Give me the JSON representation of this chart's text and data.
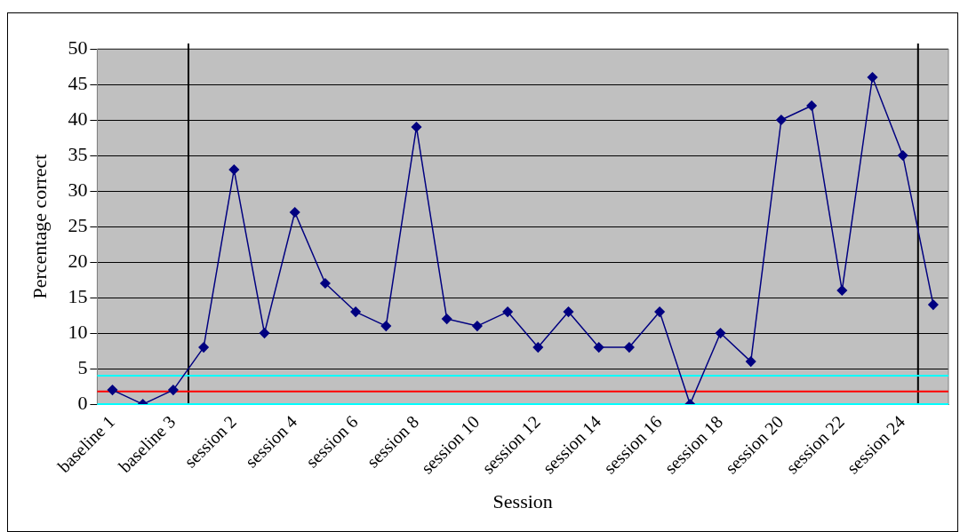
{
  "chart_data": {
    "type": "line",
    "xlabel": "Session",
    "ylabel": "Percentage correct",
    "categories": [
      "baseline 1",
      null,
      "baseline 3",
      null,
      "session 2",
      null,
      "session 4",
      null,
      "session 6",
      null,
      "session 8",
      null,
      "session 10",
      null,
      "session 12",
      null,
      "session 14",
      null,
      "session 16",
      null,
      "session 18",
      null,
      "session 20",
      null,
      "session 22",
      null,
      "session 24",
      null
    ],
    "series": [
      {
        "color": "#000080",
        "values": [
          2,
          0,
          2,
          8,
          33,
          10,
          27,
          17,
          13,
          11,
          39,
          12,
          11,
          13,
          8,
          13,
          8,
          8,
          13,
          0,
          10,
          6,
          40,
          42,
          16,
          46,
          35,
          14
        ]
      }
    ],
    "ylim": [
      0,
      50
    ],
    "yticks": [
      0,
      5,
      10,
      15,
      20,
      25,
      30,
      35,
      40,
      45,
      50
    ],
    "grid": "y",
    "legend": false,
    "marker": "diamond",
    "line_style": "solid",
    "ref_lines": [
      {
        "axis": "y",
        "value": 4,
        "color": "#00ffff"
      },
      {
        "axis": "y",
        "value": 1.8,
        "color": "#ff0000"
      },
      {
        "axis": "y",
        "value": 0,
        "color": "#00ffff"
      }
    ]
  }
}
